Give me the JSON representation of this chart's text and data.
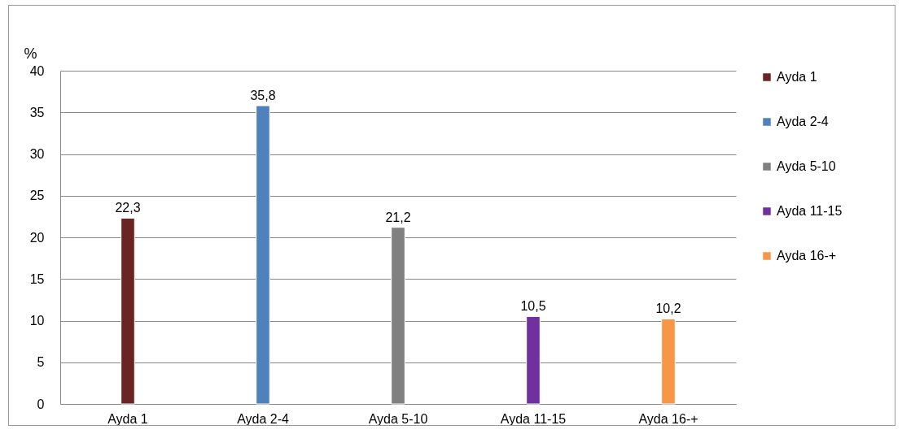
{
  "chart_data": {
    "type": "bar",
    "ylabel": "%",
    "categories": [
      "Ayda 1",
      "Ayda 2-4",
      "Ayda 5-10",
      "Ayda 11-15",
      "Ayda 16-+"
    ],
    "series": [
      {
        "name": "Ayda 1",
        "color": "#692424",
        "values": [
          22.3,
          null,
          null,
          null,
          null
        ],
        "value_labels": [
          "22,3",
          null,
          null,
          null,
          null
        ]
      },
      {
        "name": "Ayda 2-4",
        "color": "#4f81bd",
        "values": [
          null,
          35.8,
          null,
          null,
          null
        ],
        "value_labels": [
          null,
          "35,8",
          null,
          null,
          null
        ]
      },
      {
        "name": "Ayda 5-10",
        "color": "#808080",
        "values": [
          null,
          null,
          21.2,
          null,
          null
        ],
        "value_labels": [
          null,
          null,
          "21,2",
          null,
          null
        ]
      },
      {
        "name": "Ayda 11-15",
        "color": "#7030a0",
        "values": [
          null,
          null,
          null,
          10.5,
          null
        ],
        "value_labels": [
          null,
          null,
          null,
          "10,5",
          null
        ]
      },
      {
        "name": "Ayda 16-+",
        "color": "#f79646",
        "values": [
          null,
          null,
          null,
          null,
          10.2
        ],
        "value_labels": [
          null,
          null,
          null,
          null,
          "10,2"
        ]
      }
    ],
    "ylim": [
      0,
      40
    ],
    "yticks": [
      0,
      5,
      10,
      15,
      20,
      25,
      30,
      35,
      40
    ],
    "grid": "y",
    "legend": "right"
  }
}
